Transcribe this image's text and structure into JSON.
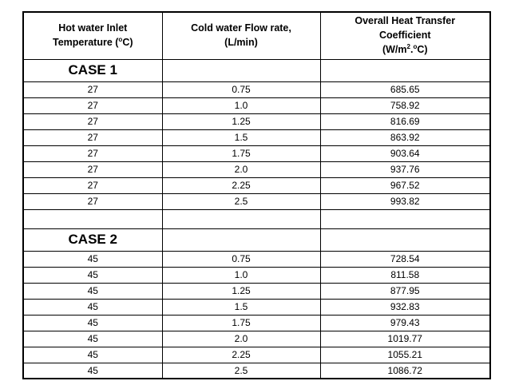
{
  "table": {
    "border_color": "#000000",
    "text_color": "#000000",
    "background_color": "#ffffff",
    "header": {
      "col1": {
        "line1": "Hot water Inlet",
        "line2_pre": "Temperature (",
        "line2_sup": "o",
        "line2_post": "C)"
      },
      "col2": {
        "line1": "Cold water Flow rate,",
        "line2": "(L/min)"
      },
      "col3": {
        "line1": "Overall Heat Transfer",
        "line2": "Coefficient",
        "line3_pre": "(W/m",
        "line3_sup1": "2",
        "line3_dot": ".",
        "line3_sup2": "o",
        "line3_post": "C)"
      }
    },
    "sections": [
      {
        "label": "CASE 1",
        "rows": [
          {
            "temp": "27",
            "flow": "0.75",
            "u": "685.65"
          },
          {
            "temp": "27",
            "flow": "1.0",
            "u": "758.92"
          },
          {
            "temp": "27",
            "flow": "1.25",
            "u": "816.69"
          },
          {
            "temp": "27",
            "flow": "1.5",
            "u": "863.92"
          },
          {
            "temp": "27",
            "flow": "1.75",
            "u": "903.64"
          },
          {
            "temp": "27",
            "flow": "2.0",
            "u": "937.76"
          },
          {
            "temp": "27",
            "flow": "2.25",
            "u": "967.52"
          },
          {
            "temp": "27",
            "flow": "2.5",
            "u": "993.82"
          }
        ]
      },
      {
        "label": "CASE 2",
        "rows": [
          {
            "temp": "45",
            "flow": "0.75",
            "u": "728.54"
          },
          {
            "temp": "45",
            "flow": "1.0",
            "u": "811.58"
          },
          {
            "temp": "45",
            "flow": "1.25",
            "u": "877.95"
          },
          {
            "temp": "45",
            "flow": "1.5",
            "u": "932.83"
          },
          {
            "temp": "45",
            "flow": "1.75",
            "u": "979.43"
          },
          {
            "temp": "45",
            "flow": "2.0",
            "u": "1019.77"
          },
          {
            "temp": "45",
            "flow": "2.25",
            "u": "1055.21"
          },
          {
            "temp": "45",
            "flow": "2.5",
            "u": "1086.72"
          }
        ]
      }
    ]
  }
}
